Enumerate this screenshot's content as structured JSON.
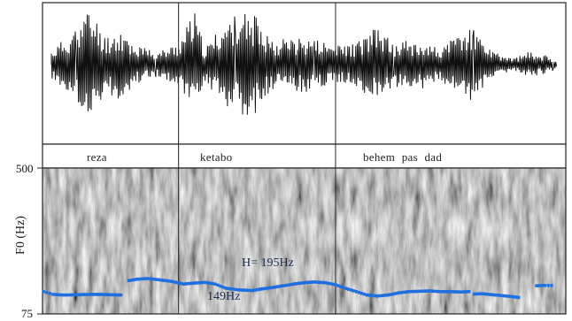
{
  "chart_data": {
    "type": "line",
    "ylabel": "F0 (Hz)",
    "yticks": [
      "500",
      "75"
    ],
    "ylim": [
      75,
      500
    ],
    "words": [
      {
        "label": "reza",
        "start": 0.0,
        "end": 0.26
      },
      {
        "label": "ketabo",
        "start": 0.26,
        "end": 0.56
      },
      {
        "label": "behem pas dad",
        "start": 0.56,
        "end": 1.0
      }
    ],
    "annotations": [
      {
        "text": "H= 195Hz"
      },
      {
        "text": "149Hz"
      }
    ],
    "series": [
      {
        "color": "#1e6fe0",
        "segments": [
          [
            [
              0.002,
              140
            ],
            [
              0.02,
              132
            ],
            [
              0.04,
              130
            ],
            [
              0.07,
              131
            ],
            [
              0.1,
              132
            ],
            [
              0.13,
              131
            ],
            [
              0.15,
              130
            ]
          ],
          [
            [
              0.165,
              172
            ],
            [
              0.18,
              176
            ],
            [
              0.2,
              178
            ],
            [
              0.22,
              175
            ],
            [
              0.245,
              170
            ],
            [
              0.27,
              162
            ],
            [
              0.29,
              165
            ],
            [
              0.31,
              167
            ],
            [
              0.33,
              162
            ],
            [
              0.35,
              150
            ],
            [
              0.375,
              145
            ],
            [
              0.4,
              143
            ],
            [
              0.42,
              148
            ],
            [
              0.44,
              152
            ],
            [
              0.46,
              157
            ],
            [
              0.48,
              162
            ],
            [
              0.5,
              166
            ],
            [
              0.52,
              168
            ],
            [
              0.54,
              166
            ],
            [
              0.56,
              160
            ],
            [
              0.58,
              149
            ],
            [
              0.6,
              140
            ],
            [
              0.62,
              130
            ],
            [
              0.64,
              127
            ],
            [
              0.66,
              130
            ],
            [
              0.68,
              136
            ],
            [
              0.7,
              140
            ],
            [
              0.72,
              141
            ],
            [
              0.74,
              142
            ],
            [
              0.76,
              140
            ],
            [
              0.78,
              140
            ],
            [
              0.8,
              139
            ],
            [
              0.815,
              140
            ]
          ],
          [
            [
              0.825,
              133
            ],
            [
              0.84,
              134
            ],
            [
              0.86,
              131
            ],
            [
              0.88,
              128
            ],
            [
              0.9,
              125
            ],
            [
              0.91,
              123
            ]
          ],
          [
            [
              0.944,
              157
            ],
            [
              0.96,
              158
            ],
            [
              0.973,
              158
            ]
          ]
        ]
      }
    ]
  }
}
